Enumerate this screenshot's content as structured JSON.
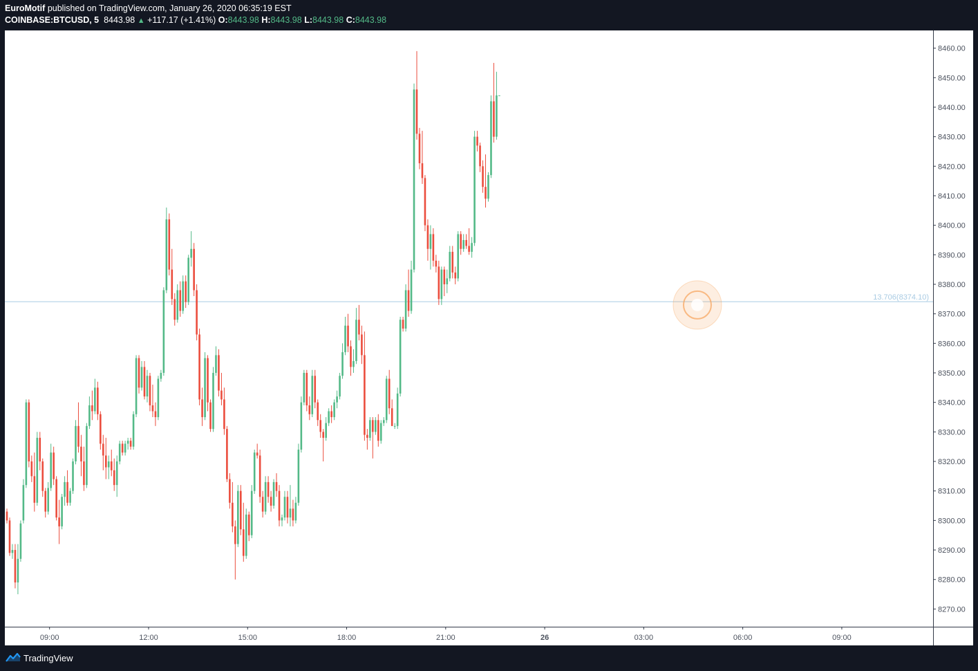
{
  "header": {
    "author": "EuroMotif",
    "published_text": "published on TradingView.com, January 26, 2020 06:35:19 EST",
    "symbol": "COINBASE:BTCUSD, 5",
    "last_price": "8443.98",
    "change_arrow": "▲",
    "change": "+117.17 (+1.41%)",
    "open_label": "O:",
    "open": "8443.98",
    "high_label": "H:",
    "high": "8443.98",
    "low_label": "L:",
    "low": "8443.98",
    "close_label": "C:",
    "close": "8443.98"
  },
  "footer": {
    "brand": "TradingView"
  },
  "colors": {
    "up": "#53b987",
    "down": "#eb4d3d",
    "page_bg": "#131722",
    "hline": "#a9cbe3",
    "marker": "#f6a35a"
  },
  "chart_data": {
    "type": "candlestick",
    "title": "",
    "xlabel": "",
    "ylabel": "",
    "ylim": [
      8264,
      8466
    ],
    "y_ticks": [
      8270,
      8280,
      8290,
      8300,
      8310,
      8320,
      8330,
      8340,
      8350,
      8360,
      8370,
      8380,
      8390,
      8400,
      8410,
      8420,
      8430,
      8440,
      8450,
      8460
    ],
    "x_ticks": [
      {
        "label": "09:00",
        "bar": 15.5,
        "bold": false
      },
      {
        "label": "12:00",
        "bar": 51.5,
        "bold": false
      },
      {
        "label": "15:00",
        "bar": 87.5,
        "bold": false
      },
      {
        "label": "18:00",
        "bar": 123.5,
        "bold": false
      },
      {
        "label": "21:00",
        "bar": 159.5,
        "bold": false
      },
      {
        "label": "26",
        "bar": 195.5,
        "bold": true
      },
      {
        "label": "03:00",
        "bar": 231.5,
        "bold": false
      },
      {
        "label": "06:00",
        "bar": 267.5,
        "bold": false
      },
      {
        "label": "09:00",
        "bar": 303.5,
        "bold": false
      }
    ],
    "horizontal_line": {
      "price": 8374.1,
      "label": "13.706(8374.10)"
    },
    "marker": {
      "bar": 251,
      "price": 8373
    },
    "candles": [
      [
        8303,
        8304,
        8299,
        8300
      ],
      [
        8300,
        8301,
        8288,
        8289
      ],
      [
        8289,
        8292,
        8287,
        8290
      ],
      [
        8290,
        8292,
        8277,
        8279
      ],
      [
        8279,
        8292,
        8275,
        8287
      ],
      [
        8287,
        8300,
        8286,
        8299
      ],
      [
        8300,
        8314,
        8299,
        8312
      ],
      [
        8312,
        8341,
        8311,
        8340
      ],
      [
        8340,
        8341,
        8318,
        8320
      ],
      [
        8320,
        8322,
        8313,
        8315
      ],
      [
        8315,
        8323,
        8303,
        8306
      ],
      [
        8306,
        8330,
        8305,
        8328
      ],
      [
        8328,
        8330,
        8317,
        8320
      ],
      [
        8320,
        8321,
        8308,
        8310
      ],
      [
        8310,
        8311,
        8301,
        8303
      ],
      [
        8303,
        8313,
        8302,
        8311
      ],
      [
        8311,
        8326,
        8310,
        8323
      ],
      [
        8323,
        8325,
        8312,
        8314
      ],
      [
        8314,
        8315,
        8300,
        8301
      ],
      [
        8301,
        8307,
        8292,
        8298
      ],
      [
        8298,
        8309,
        8297,
        8308
      ],
      [
        8308,
        8315,
        8305,
        8313
      ],
      [
        8313,
        8317,
        8305,
        8306
      ],
      [
        8306,
        8311,
        8305,
        8310
      ],
      [
        8310,
        8321,
        8309,
        8320
      ],
      [
        8320,
        8334,
        8319,
        8332
      ],
      [
        8332,
        8340,
        8323,
        8325
      ],
      [
        8325,
        8329,
        8315,
        8320
      ],
      [
        8320,
        8325,
        8310,
        8312
      ],
      [
        8312,
        8333,
        8311,
        8332
      ],
      [
        8332,
        8342,
        8331,
        8339
      ],
      [
        8339,
        8344,
        8334,
        8337
      ],
      [
        8337,
        8348,
        8336,
        8345
      ],
      [
        8345,
        8347,
        8334,
        8336
      ],
      [
        8336,
        8337,
        8324,
        8326
      ],
      [
        8326,
        8329,
        8317,
        8322
      ],
      [
        8322,
        8328,
        8314,
        8318
      ],
      [
        8318,
        8322,
        8314,
        8320
      ],
      [
        8320,
        8324,
        8315,
        8317
      ],
      [
        8317,
        8321,
        8310,
        8312
      ],
      [
        8312,
        8322,
        8308,
        8320
      ],
      [
        8320,
        8327,
        8319,
        8326
      ],
      [
        8326,
        8327,
        8322,
        8323
      ],
      [
        8323,
        8327,
        8322,
        8326
      ],
      [
        8326,
        8328,
        8324,
        8327
      ],
      [
        8327,
        8328,
        8324,
        8325
      ],
      [
        8325,
        8337,
        8324,
        8336
      ],
      [
        8336,
        8356,
        8335,
        8355
      ],
      [
        8355,
        8356,
        8343,
        8345
      ],
      [
        8345,
        8354,
        8344,
        8352
      ],
      [
        8352,
        8354,
        8341,
        8342
      ],
      [
        8342,
        8351,
        8340,
        8349
      ],
      [
        8349,
        8350,
        8337,
        8339
      ],
      [
        8339,
        8346,
        8335,
        8337
      ],
      [
        8337,
        8340,
        8332,
        8335
      ],
      [
        8335,
        8349,
        8334,
        8348
      ],
      [
        8348,
        8351,
        8347,
        8350
      ],
      [
        8350,
        8379,
        8349,
        8378
      ],
      [
        8378,
        8406,
        8377,
        8402
      ],
      [
        8402,
        8404,
        8383,
        8385
      ],
      [
        8385,
        8392,
        8373,
        8375
      ],
      [
        8375,
        8377,
        8366,
        8368
      ],
      [
        8368,
        8380,
        8367,
        8378
      ],
      [
        8378,
        8381,
        8369,
        8371
      ],
      [
        8371,
        8383,
        8370,
        8381
      ],
      [
        8381,
        8383,
        8372,
        8374
      ],
      [
        8374,
        8390,
        8373,
        8389
      ],
      [
        8389,
        8398,
        8386,
        8392
      ],
      [
        8392,
        8394,
        8376,
        8378
      ],
      [
        8378,
        8380,
        8361,
        8363
      ],
      [
        8363,
        8365,
        8339,
        8341
      ],
      [
        8341,
        8345,
        8332,
        8335
      ],
      [
        8335,
        8357,
        8334,
        8355
      ],
      [
        8355,
        8356,
        8337,
        8340
      ],
      [
        8340,
        8341,
        8330,
        8331
      ],
      [
        8331,
        8352,
        8330,
        8350
      ],
      [
        8350,
        8359,
        8349,
        8356
      ],
      [
        8356,
        8358,
        8342,
        8344
      ],
      [
        8344,
        8350,
        8339,
        8341
      ],
      [
        8341,
        8345,
        8329,
        8331
      ],
      [
        8331,
        8332,
        8313,
        8314
      ],
      [
        8314,
        8316,
        8304,
        8306
      ],
      [
        8306,
        8313,
        8296,
        8298
      ],
      [
        8298,
        8300,
        8280,
        8292
      ],
      [
        8292,
        8312,
        8291,
        8310
      ],
      [
        8310,
        8312,
        8295,
        8297
      ],
      [
        8297,
        8306,
        8286,
        8288
      ],
      [
        8288,
        8304,
        8287,
        8302
      ],
      [
        8302,
        8303,
        8293,
        8295
      ],
      [
        8295,
        8312,
        8294,
        8310
      ],
      [
        8310,
        8324,
        8309,
        8323
      ],
      [
        8323,
        8326,
        8321,
        8322
      ],
      [
        8322,
        8324,
        8306,
        8308
      ],
      [
        8308,
        8310,
        8301,
        8303
      ],
      [
        8303,
        8315,
        8302,
        8313
      ],
      [
        8313,
        8315,
        8306,
        8308
      ],
      [
        8308,
        8310,
        8303,
        8305
      ],
      [
        8305,
        8314,
        8304,
        8313
      ],
      [
        8313,
        8316,
        8308,
        8310
      ],
      [
        8310,
        8312,
        8298,
        8300
      ],
      [
        8300,
        8302,
        8298,
        8301
      ],
      [
        8301,
        8310,
        8300,
        8308
      ],
      [
        8308,
        8310,
        8299,
        8301
      ],
      [
        8301,
        8312,
        8298,
        8304
      ],
      [
        8304,
        8307,
        8298,
        8300
      ],
      [
        8300,
        8308,
        8299,
        8306
      ],
      [
        8306,
        8326,
        8305,
        8324
      ],
      [
        8324,
        8342,
        8323,
        8340
      ],
      [
        8340,
        8351,
        8339,
        8350
      ],
      [
        8350,
        8351,
        8337,
        8339
      ],
      [
        8339,
        8342,
        8334,
        8336
      ],
      [
        8336,
        8351,
        8335,
        8349
      ],
      [
        8349,
        8351,
        8338,
        8340
      ],
      [
        8340,
        8341,
        8332,
        8334
      ],
      [
        8334,
        8336,
        8328,
        8330
      ],
      [
        8330,
        8331,
        8320,
        8328
      ],
      [
        8328,
        8335,
        8327,
        8333
      ],
      [
        8333,
        8338,
        8332,
        8337
      ],
      [
        8337,
        8339,
        8333,
        8335
      ],
      [
        8335,
        8341,
        8334,
        8340
      ],
      [
        8340,
        8344,
        8338,
        8342
      ],
      [
        8342,
        8350,
        8341,
        8349
      ],
      [
        8349,
        8360,
        8348,
        8357
      ],
      [
        8357,
        8369,
        8356,
        8366
      ],
      [
        8366,
        8370,
        8357,
        8359
      ],
      [
        8359,
        8361,
        8349,
        8352
      ],
      [
        8352,
        8358,
        8350,
        8354
      ],
      [
        8354,
        8372,
        8353,
        8368
      ],
      [
        8368,
        8373,
        8361,
        8363
      ],
      [
        8363,
        8366,
        8353,
        8356
      ],
      [
        8356,
        8364,
        8327,
        8329
      ],
      [
        8329,
        8331,
        8324,
        8328
      ],
      [
        8328,
        8335,
        8327,
        8334
      ],
      [
        8334,
        8335,
        8321,
        8330
      ],
      [
        8330,
        8335,
        8329,
        8334
      ],
      [
        8334,
        8336,
        8325,
        8327
      ],
      [
        8327,
        8334,
        8326,
        8333
      ],
      [
        8333,
        8335,
        8332,
        8334
      ],
      [
        8334,
        8349,
        8333,
        8348
      ],
      [
        8348,
        8351,
        8336,
        8338
      ],
      [
        8338,
        8341,
        8332,
        8332
      ],
      [
        8332,
        8333,
        8331,
        8332
      ],
      [
        8332,
        8345,
        8331,
        8343
      ],
      [
        8343,
        8369,
        8342,
        8368
      ],
      [
        8368,
        8369,
        8364,
        8365
      ],
      [
        8365,
        8380,
        8364,
        8378
      ],
      [
        8378,
        8385,
        8369,
        8371
      ],
      [
        8371,
        8388,
        8370,
        8385
      ],
      [
        8385,
        8448,
        8384,
        8446
      ],
      [
        8446,
        8459,
        8429,
        8431
      ],
      [
        8431,
        8433,
        8419,
        8421
      ],
      [
        8421,
        8432,
        8414,
        8416
      ],
      [
        8416,
        8417,
        8398,
        8400
      ],
      [
        8400,
        8402,
        8388,
        8392
      ],
      [
        8392,
        8400,
        8385,
        8397
      ],
      [
        8397,
        8399,
        8386,
        8388
      ],
      [
        8388,
        8390,
        8384,
        8386
      ],
      [
        8386,
        8388,
        8373,
        8375
      ],
      [
        8375,
        8386,
        8373,
        8385
      ],
      [
        8385,
        8386,
        8376,
        8380
      ],
      [
        8380,
        8385,
        8377,
        8382
      ],
      [
        8382,
        8393,
        8381,
        8391
      ],
      [
        8391,
        8393,
        8382,
        8384
      ],
      [
        8384,
        8386,
        8380,
        8382
      ],
      [
        8382,
        8398,
        8381,
        8397
      ],
      [
        8397,
        8398,
        8390,
        8392
      ],
      [
        8392,
        8397,
        8391,
        8395
      ],
      [
        8395,
        8397,
        8392,
        8393
      ],
      [
        8393,
        8399,
        8390,
        8391
      ],
      [
        8391,
        8396,
        8389,
        8394
      ],
      [
        8394,
        8432,
        8393,
        8430
      ],
      [
        8430,
        8432,
        8425,
        8427
      ],
      [
        8427,
        8428,
        8418,
        8420
      ],
      [
        8420,
        8422,
        8411,
        8413
      ],
      [
        8413,
        8424,
        8406,
        8409
      ],
      [
        8409,
        8418,
        8408,
        8417
      ],
      [
        8417,
        8444,
        8416,
        8442
      ],
      [
        8442,
        8455,
        8428,
        8430
      ],
      [
        8430,
        8452,
        8429,
        8444
      ],
      [
        8444,
        8444,
        8444,
        8444
      ]
    ]
  }
}
